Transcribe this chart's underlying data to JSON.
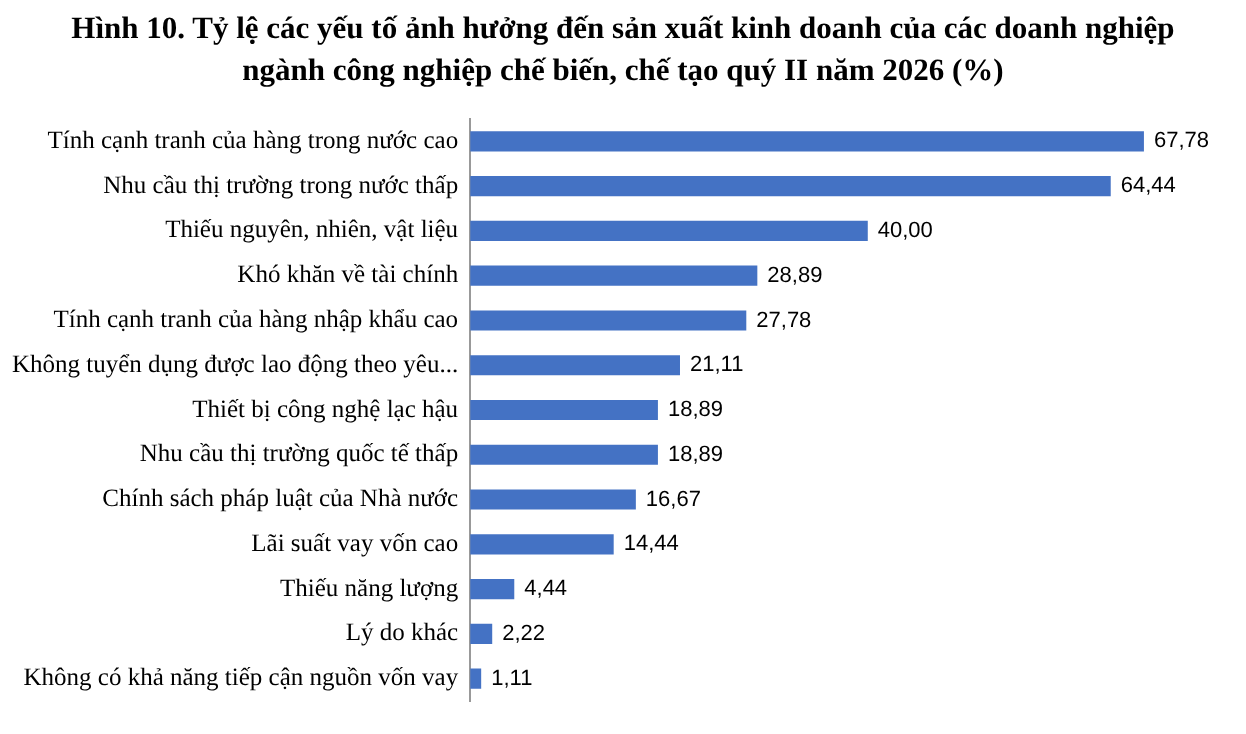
{
  "chart_data": {
    "type": "bar",
    "orientation": "horizontal",
    "title": "Hình 10. Tỷ lệ các yếu tố ảnh hưởng đến sản xuất kinh doanh của các doanh nghiệp ngành công nghiệp chế biến, chế tạo quý II năm 2026 (%)",
    "categories": [
      "Tính cạnh tranh của hàng trong nước cao",
      "Nhu cầu thị trường trong nước thấp",
      "Thiếu nguyên, nhiên, vật liệu",
      "Khó khăn về tài chính",
      "Tính cạnh tranh của hàng nhập khẩu cao",
      "Không tuyển dụng được lao động theo yêu...",
      "Thiết bị công nghệ lạc hậu",
      "Nhu cầu thị trường quốc tế thấp",
      "Chính sách pháp luật của Nhà nước",
      "Lãi suất vay vốn cao",
      "Thiếu năng lượng",
      "Lý do khác",
      "Không có khả năng tiếp cận nguồn vốn vay"
    ],
    "values": [
      67.78,
      64.44,
      40.0,
      28.89,
      27.78,
      21.11,
      18.89,
      18.89,
      16.67,
      14.44,
      4.44,
      2.22,
      1.11
    ],
    "value_labels": [
      "67,78",
      "64,44",
      "40,00",
      "28,89",
      "27,78",
      "21,11",
      "18,89",
      "18,89",
      "16,67",
      "14,44",
      "4,44",
      "2,22",
      "1,11"
    ],
    "color": "#4472c4",
    "grid": false,
    "legend": false
  }
}
